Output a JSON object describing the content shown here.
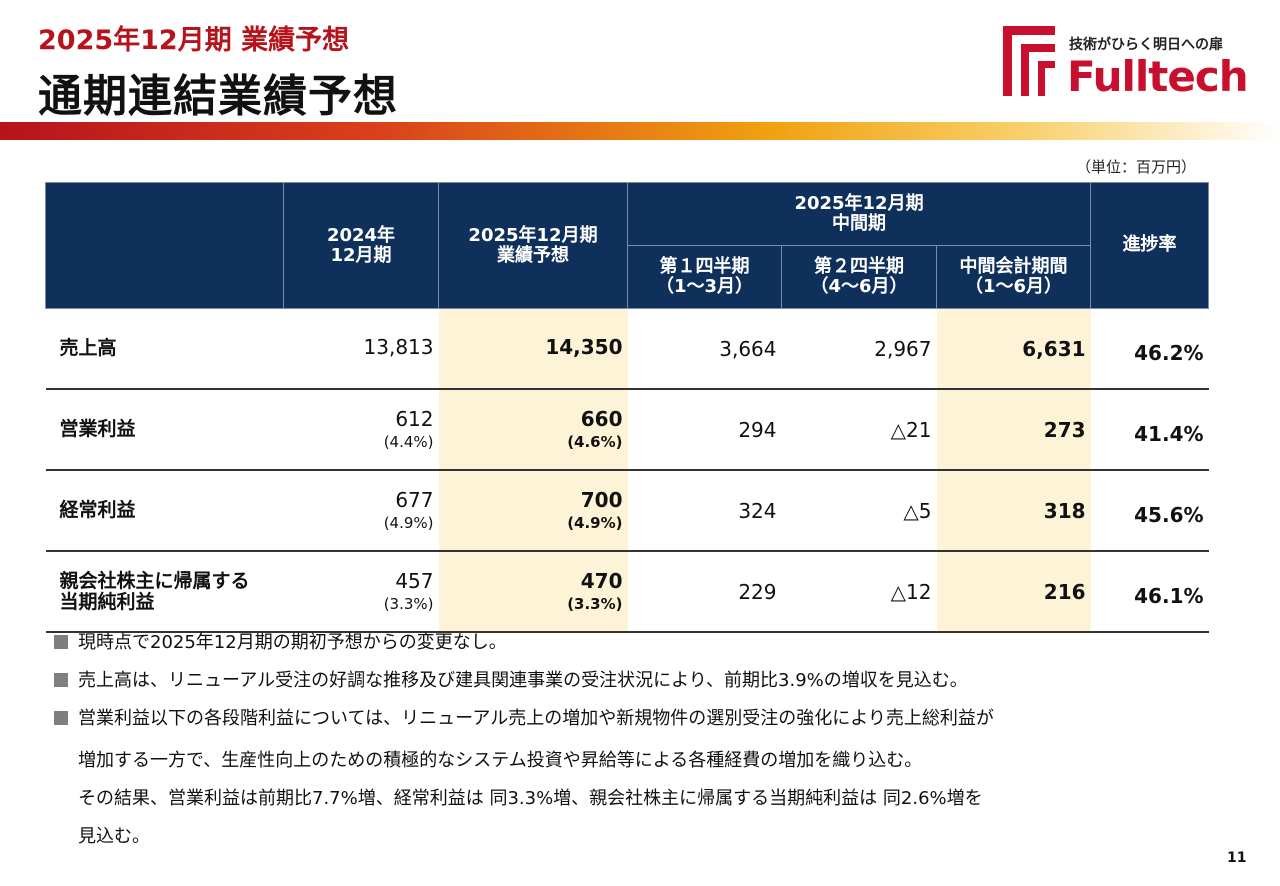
{
  "header": {
    "subtitle": "2025年12月期 業績予想",
    "title": "通期連結業績予想"
  },
  "logo": {
    "tagline": "技術がひらく明日への扉",
    "brand": "Fulltech",
    "color": "#c8102e"
  },
  "unit": "（単位：百万円）",
  "table": {
    "columns": {
      "fy2024": [
        "2024年",
        "12月期"
      ],
      "fy2025_forecast": [
        "2025年12月期",
        "業績予想"
      ],
      "interim_group": [
        "2025年12月期",
        "中間期"
      ],
      "q1": [
        "第１四半期",
        "（1～3月）"
      ],
      "q2": [
        "第２四半期",
        "（4～6月）"
      ],
      "interim_total": [
        "中間会計期間",
        "（1～6月）"
      ],
      "progress": "進捗率"
    },
    "rows": [
      {
        "label": [
          "売上高",
          ""
        ],
        "fy2024": "13,813",
        "fy2024_ratio": "",
        "forecast": "14,350",
        "forecast_ratio": "",
        "q1": "3,664",
        "q2": "2,967",
        "interim": "6,631",
        "progress": "46.2%"
      },
      {
        "label": [
          "営業利益",
          ""
        ],
        "fy2024": "612",
        "fy2024_ratio": "(4.4%)",
        "forecast": "660",
        "forecast_ratio": "(4.6%)",
        "q1": "294",
        "q2": "△21",
        "interim": "273",
        "progress": "41.4%"
      },
      {
        "label": [
          "経常利益",
          ""
        ],
        "fy2024": "677",
        "fy2024_ratio": "(4.9%)",
        "forecast": "700",
        "forecast_ratio": "(4.9%)",
        "q1": "324",
        "q2": "△5",
        "interim": "318",
        "progress": "45.6%"
      },
      {
        "label": [
          "親会社株主に帰属する",
          "当期純利益"
        ],
        "fy2024": "457",
        "fy2024_ratio": "(3.3%)",
        "forecast": "470",
        "forecast_ratio": "(3.3%)",
        "q1": "229",
        "q2": "△12",
        "interim": "216",
        "progress": "46.1%"
      }
    ]
  },
  "notes": [
    "現時点で2025年12月期の期初予想からの変更なし。",
    " 売上高は、リニューアル受注の好調な推移及び建具関連事業の受注状況により、前期比3.9%の増収を見込む。",
    "営業利益以下の各段階利益については、リニューアル売上の増加や新規物件の選別受注の強化により売上総利益が"
  ],
  "note_continuation": [
    "増加する一方で、生産性向上のための積極的なシステム投資や昇給等による各種経費の増加を織り込む。",
    "その結果、営業利益は前期比7.7%増、経常利益は 同3.3%増、親会社株主に帰属する当期純利益は 同2.6%増を",
    "見込む。"
  ],
  "page_number": "11"
}
